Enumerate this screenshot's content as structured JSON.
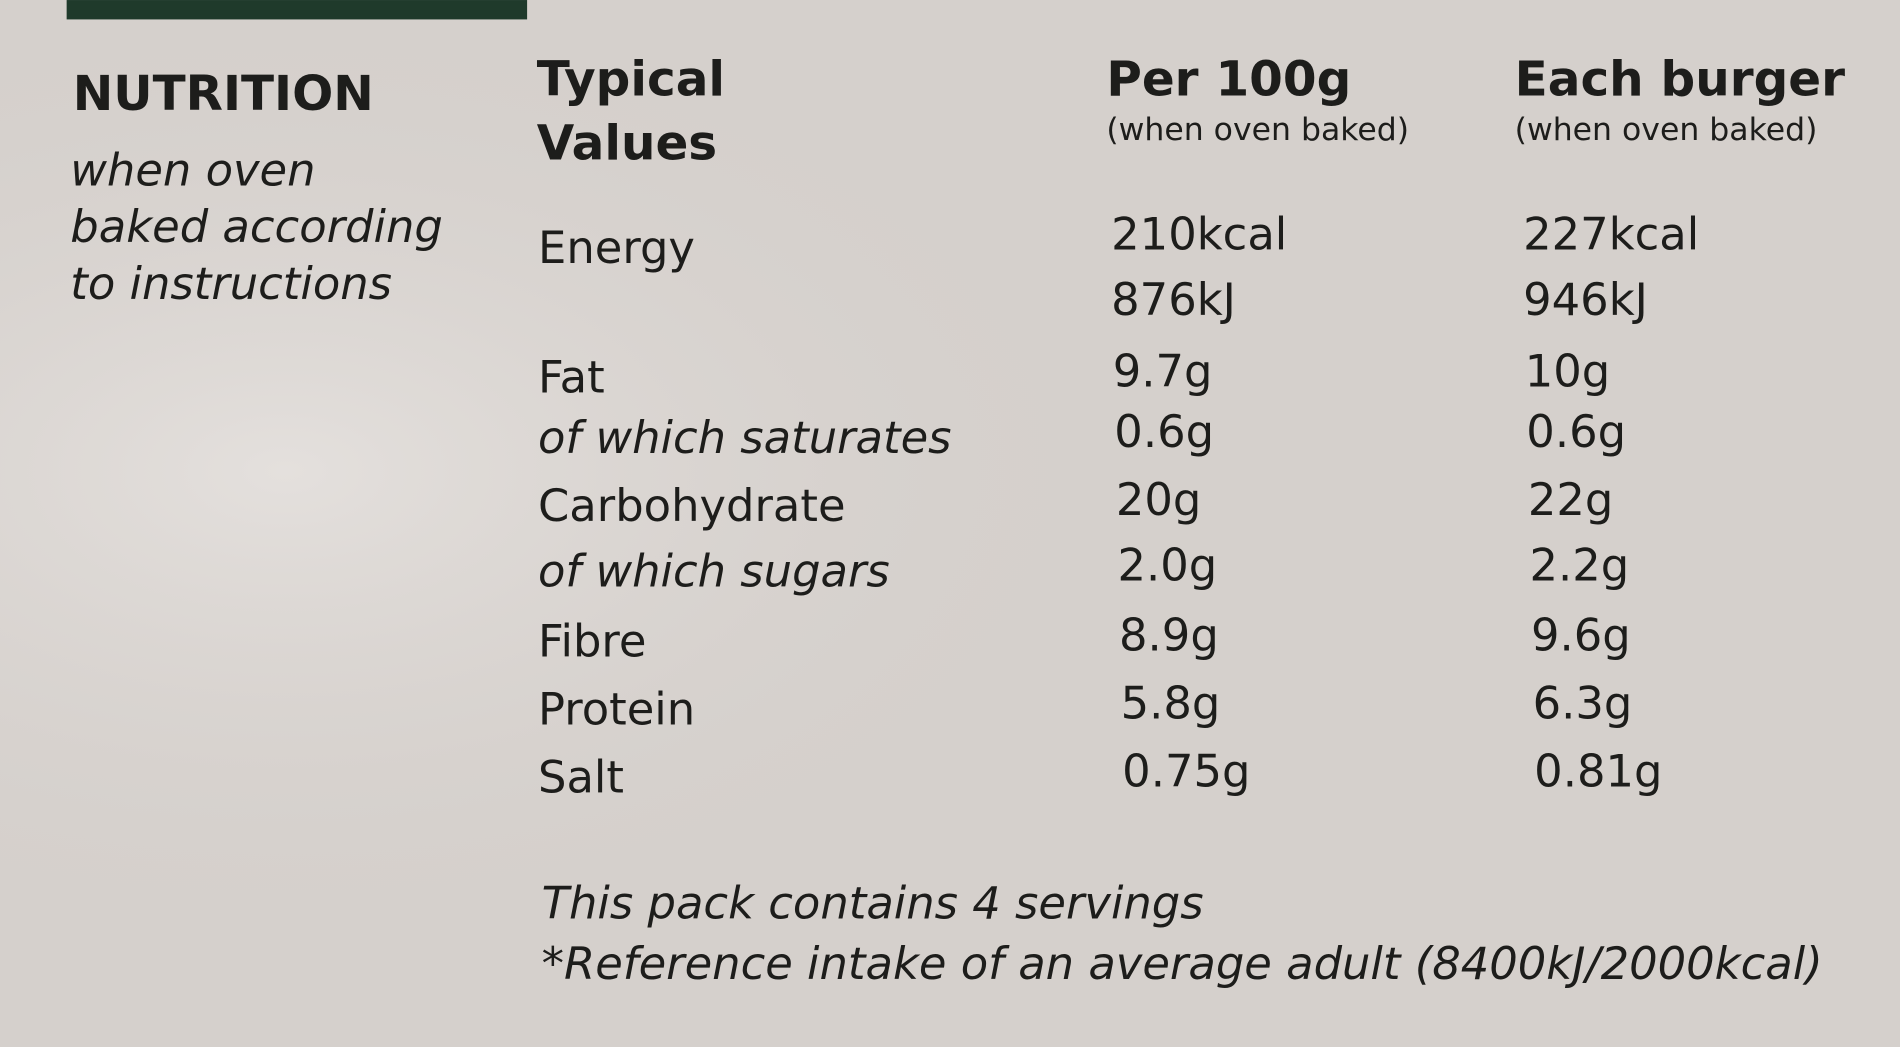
{
  "header": {
    "title": "NUTRITION",
    "subtitle_lines": [
      "when oven",
      "baked according",
      "to instructions"
    ]
  },
  "table": {
    "columns": [
      {
        "title_lines": [
          "Typical",
          "Values"
        ]
      },
      {
        "title_lines": [
          "Per 100g"
        ],
        "note": "(when oven baked)"
      },
      {
        "title_lines": [
          "Each burger"
        ],
        "note": "(when oven baked)"
      }
    ],
    "rows": [
      [
        "Energy",
        [
          "210kcal",
          "876kJ"
        ],
        [
          "227kcal",
          "946kJ"
        ]
      ],
      [
        "Fat",
        [
          "9.7g"
        ],
        [
          "10g"
        ]
      ],
      [
        "of which saturates",
        [
          "0.6g"
        ],
        [
          "0.6g"
        ]
      ],
      [
        "Carbohydrate",
        [
          "20g"
        ],
        [
          "22g"
        ]
      ],
      [
        "of which sugars",
        [
          "2.0g"
        ],
        [
          "2.2g"
        ]
      ],
      [
        "Fibre",
        [
          "8.9g"
        ],
        [
          "9.6g"
        ]
      ],
      [
        "Protein",
        [
          "5.8g"
        ],
        [
          "6.3g"
        ]
      ],
      [
        "Salt",
        [
          "0.75g"
        ],
        [
          "0.81g"
        ]
      ]
    ]
  },
  "footer": [
    "This pack contains 4 servings",
    "*Reference intake of an average adult (8400kJ/2000kcal)"
  ]
}
